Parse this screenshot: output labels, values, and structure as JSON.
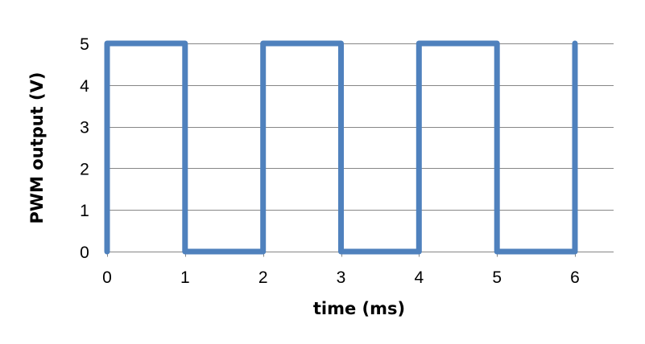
{
  "chart_data": {
    "type": "line",
    "title": "",
    "xlabel": "time (ms)",
    "ylabel": "PWM output (V)",
    "xlim": [
      0,
      6
    ],
    "ylim": [
      0,
      5
    ],
    "x_ticks": [
      "0",
      "1",
      "2",
      "3",
      "4",
      "5",
      "6"
    ],
    "y_ticks": [
      "0",
      "1",
      "2",
      "3",
      "4",
      "5"
    ],
    "grid": "horizontal",
    "legend": "none",
    "series": [
      {
        "color": "#4f81bd",
        "points": [
          [
            0,
            0
          ],
          [
            0,
            5
          ],
          [
            1,
            5
          ],
          [
            1,
            0
          ],
          [
            2,
            0
          ],
          [
            2,
            5
          ],
          [
            3,
            5
          ],
          [
            3,
            0
          ],
          [
            4,
            0
          ],
          [
            4,
            5
          ],
          [
            5,
            5
          ],
          [
            5,
            0
          ],
          [
            6,
            0
          ],
          [
            6,
            5
          ]
        ]
      }
    ],
    "colors": {
      "line": "#4f81bd",
      "grid": "#868686",
      "axis": "#868686"
    }
  }
}
